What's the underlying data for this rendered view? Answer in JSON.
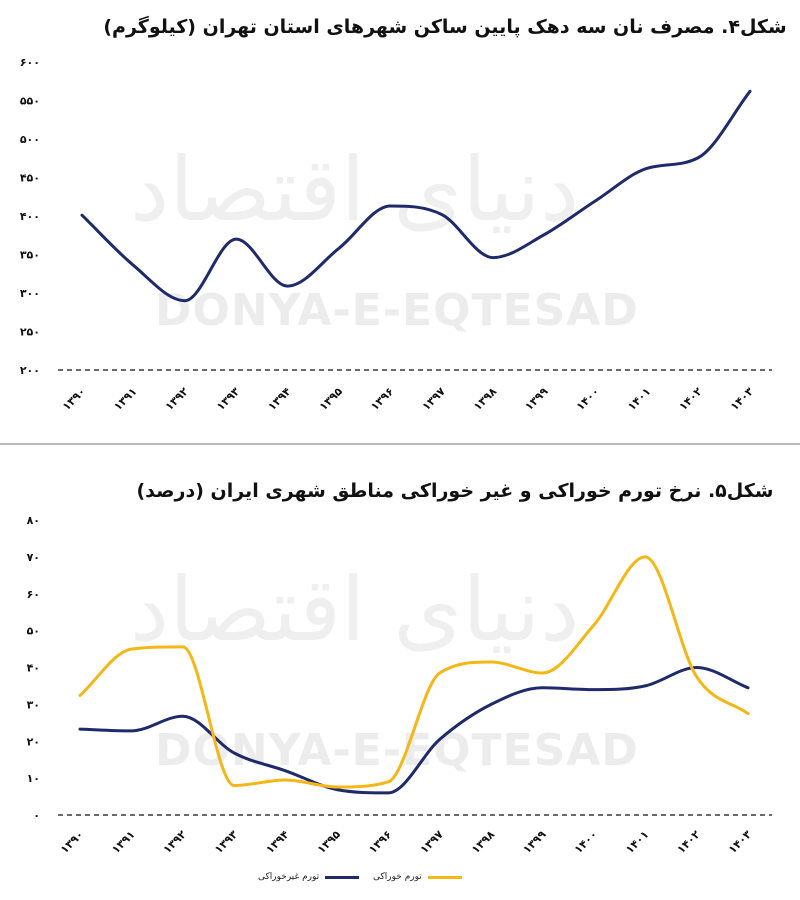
{
  "watermark": {
    "latin": "DONYA-E-EQTESAD",
    "persian": "دنیای اقتصاد"
  },
  "charts": [
    {
      "title": "شکل۴. مصرف نان سه دهک پایین ساکن شهرهای استان تهران (کیلوگرم)"
    },
    {
      "title": "شکل۵. نرخ تورم خوراکی و غیر خوراکی مناطق شهری ایران (درصد)",
      "legend": [
        {
          "label": "تورم غیرخوراکی",
          "color": "#1f2a6b"
        },
        {
          "label": "تورم خوراکی",
          "color": "#f5b617"
        }
      ]
    }
  ],
  "chart_data": [
    {
      "type": "line",
      "title": "شکل۴. مصرف نان سه دهک پایین ساکن شهرهای استان تهران (کیلوگرم)",
      "categories": [
        "۱۳۹۰",
        "۱۳۹۱",
        "۱۳۹۲",
        "۱۳۹۳",
        "۱۳۹۴",
        "۱۳۹۵",
        "۱۳۹۶",
        "۱۳۹۷",
        "۱۳۹۸",
        "۱۳۹۹",
        "۱۴۰۰",
        "۱۴۰۱",
        "۱۴۰۲",
        "۱۴۰۳"
      ],
      "series": [
        {
          "color": "#1f2a6b",
          "values": [
            401,
            336,
            290,
            370,
            309,
            358,
            413,
            402,
            346,
            376,
            420,
            462,
            476,
            562
          ]
        }
      ],
      "ylim": [
        200,
        600
      ],
      "yticks": [
        200,
        250,
        300,
        350,
        400,
        450,
        500,
        550,
        600
      ],
      "ytick_labels": [
        "۲۰۰",
        "۲۵۰",
        "۳۰۰",
        "۳۵۰",
        "۴۰۰",
        "۴۵۰",
        "۵۰۰",
        "۵۵۰",
        "۶۰۰"
      ],
      "grid": false,
      "baseline": "dashed"
    },
    {
      "type": "line",
      "title": "شکل۵. نرخ تورم خوراکی و غیر خوراکی مناطق شهری ایران (درصد)",
      "categories": [
        "۱۳۹۰",
        "۱۳۹۱",
        "۱۳۹۲",
        "۱۳۹۳",
        "۱۳۹۴",
        "۱۳۹۵",
        "۱۳۹۶",
        "۱۳۹۷",
        "۱۳۹۸",
        "۱۳۹۹",
        "۱۴۰۰",
        "۱۴۰۱",
        "۱۴۰۲",
        "۱۴۰۳"
      ],
      "series": [
        {
          "name": "تورم غیرخوراکی",
          "color": "#1f2a6b",
          "values": [
            23.3,
            22.8,
            26.8,
            16.8,
            12.0,
            6.9,
            6.0,
            20.5,
            30.0,
            34.5,
            34.0,
            35.0,
            40.0,
            34.5
          ]
        },
        {
          "name": "تورم خوراکی",
          "color": "#f5b617",
          "values": [
            32.4,
            45.0,
            45.6,
            8.0,
            9.5,
            7.6,
            9.0,
            38.5,
            41.5,
            38.5,
            51.5,
            70.0,
            37.5,
            27.5
          ]
        }
      ],
      "ylim": [
        0,
        80
      ],
      "yticks": [
        0,
        10,
        20,
        30,
        40,
        50,
        60,
        70,
        80
      ],
      "ytick_labels": [
        "۰",
        "۱۰",
        "۲۰",
        "۳۰",
        "۴۰",
        "۵۰",
        "۶۰",
        "۷۰",
        "۸۰"
      ],
      "grid": false,
      "baseline": "dashed",
      "legend_position": "bottom"
    }
  ]
}
